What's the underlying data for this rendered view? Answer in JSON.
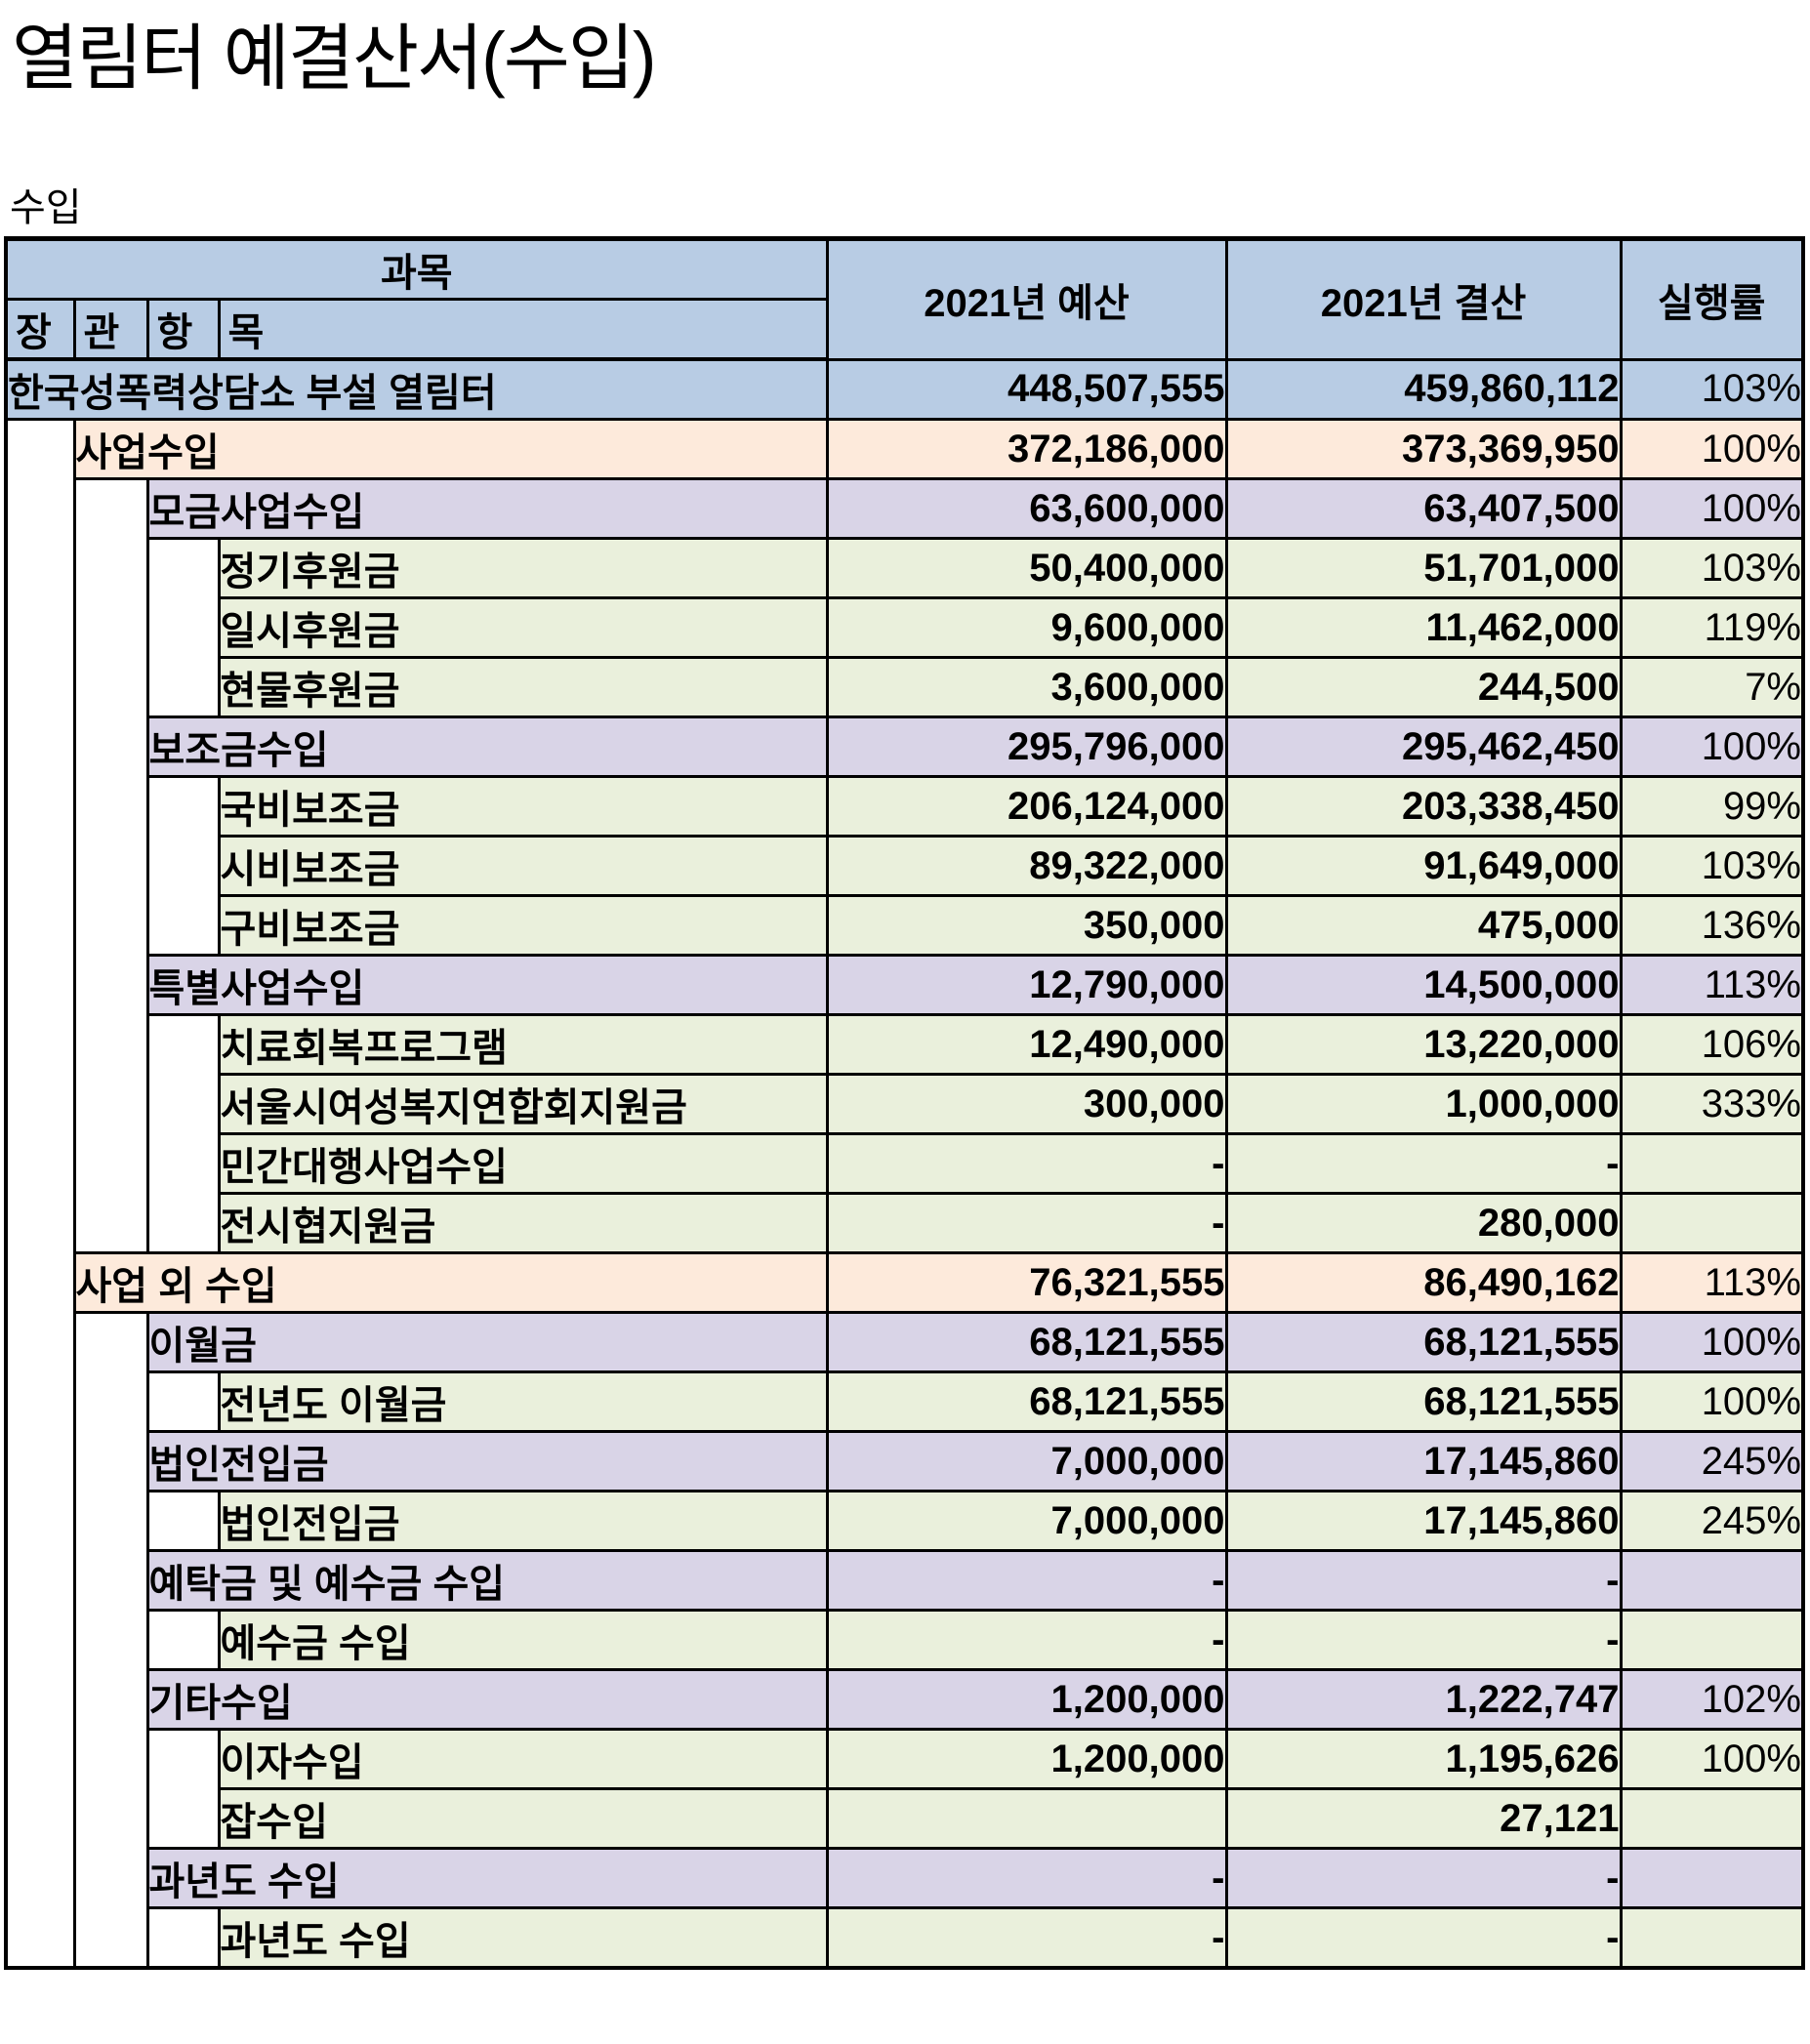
{
  "title": "열림터 예결산서(수입)",
  "section_label": "수입",
  "table": {
    "header": {
      "gwamok": "과목",
      "sub_columns": [
        "장",
        "관",
        "항",
        "목"
      ],
      "budget": "2021년 예산",
      "settlement": "2021년 결산",
      "rate": "실행률"
    },
    "colors": {
      "header_blue": "#b8cce4",
      "total_blue": "#b8cce4",
      "level1_peach": "#fdeadb",
      "level2_lavender": "#d9d4e7",
      "level3_green": "#eaf0dc",
      "indent_white": "#ffffff",
      "border_black": "#000000"
    },
    "rows": [
      {
        "label": "한국성폭력상담소 부설 열림터",
        "level": 0,
        "budget": "448,507,555",
        "settlement": "459,860,112",
        "rate": "103%"
      },
      {
        "label": "사업수입",
        "level": 1,
        "budget": "372,186,000",
        "settlement": "373,369,950",
        "rate": "100%"
      },
      {
        "label": "모금사업수입",
        "level": 2,
        "budget": "63,600,000",
        "settlement": "63,407,500",
        "rate": "100%"
      },
      {
        "label": "정기후원금",
        "level": 3,
        "budget": "50,400,000",
        "settlement": "51,701,000",
        "rate": "103%"
      },
      {
        "label": "일시후원금",
        "level": 3,
        "budget": "9,600,000",
        "settlement": "11,462,000",
        "rate": "119%"
      },
      {
        "label": "현물후원금",
        "level": 3,
        "budget": "3,600,000",
        "settlement": "244,500",
        "rate": "7%"
      },
      {
        "label": "보조금수입",
        "level": 2,
        "budget": "295,796,000",
        "settlement": "295,462,450",
        "rate": "100%"
      },
      {
        "label": "국비보조금",
        "level": 3,
        "budget": "206,124,000",
        "settlement": "203,338,450",
        "rate": "99%"
      },
      {
        "label": "시비보조금",
        "level": 3,
        "budget": "89,322,000",
        "settlement": "91,649,000",
        "rate": "103%"
      },
      {
        "label": "구비보조금",
        "level": 3,
        "budget": "350,000",
        "settlement": "475,000",
        "rate": "136%"
      },
      {
        "label": "특별사업수입",
        "level": 2,
        "budget": "12,790,000",
        "settlement": "14,500,000",
        "rate": "113%"
      },
      {
        "label": "치료회복프로그램",
        "level": 3,
        "budget": "12,490,000",
        "settlement": "13,220,000",
        "rate": "106%"
      },
      {
        "label": "서울시여성복지연합회지원금",
        "level": 3,
        "budget": "300,000",
        "settlement": "1,000,000",
        "rate": "333%"
      },
      {
        "label": "민간대행사업수입",
        "level": 3,
        "budget": "-",
        "settlement": "-",
        "rate": ""
      },
      {
        "label": "전시협지원금",
        "level": 3,
        "budget": "-",
        "settlement": "280,000",
        "rate": ""
      },
      {
        "label": "사업 외 수입",
        "level": 1,
        "budget": "76,321,555",
        "settlement": "86,490,162",
        "rate": "113%"
      },
      {
        "label": "이월금",
        "level": 2,
        "budget": "68,121,555",
        "settlement": "68,121,555",
        "rate": "100%"
      },
      {
        "label": "전년도 이월금",
        "level": 3,
        "budget": "68,121,555",
        "settlement": "68,121,555",
        "rate": "100%"
      },
      {
        "label": "법인전입금",
        "level": 2,
        "budget": "7,000,000",
        "settlement": "17,145,860",
        "rate": "245%"
      },
      {
        "label": "법인전입금",
        "level": 3,
        "budget": "7,000,000",
        "settlement": "17,145,860",
        "rate": "245%"
      },
      {
        "label": "예탁금 및 예수금 수입",
        "level": 2,
        "budget": "-",
        "settlement": "-",
        "rate": ""
      },
      {
        "label": "예수금 수입",
        "level": 3,
        "budget": "-",
        "settlement": "-",
        "rate": ""
      },
      {
        "label": "기타수입",
        "level": 2,
        "budget": "1,200,000",
        "settlement": "1,222,747",
        "rate": "102%"
      },
      {
        "label": "이자수입",
        "level": 3,
        "budget": "1,200,000",
        "settlement": "1,195,626",
        "rate": "100%"
      },
      {
        "label": "잡수입",
        "level": 3,
        "budget": "",
        "settlement": "27,121",
        "rate": ""
      },
      {
        "label": "과년도 수입",
        "level": 2,
        "budget": "-",
        "settlement": "-",
        "rate": ""
      },
      {
        "label": "과년도 수입",
        "level": 3,
        "budget": "-",
        "settlement": "-",
        "rate": ""
      }
    ]
  }
}
